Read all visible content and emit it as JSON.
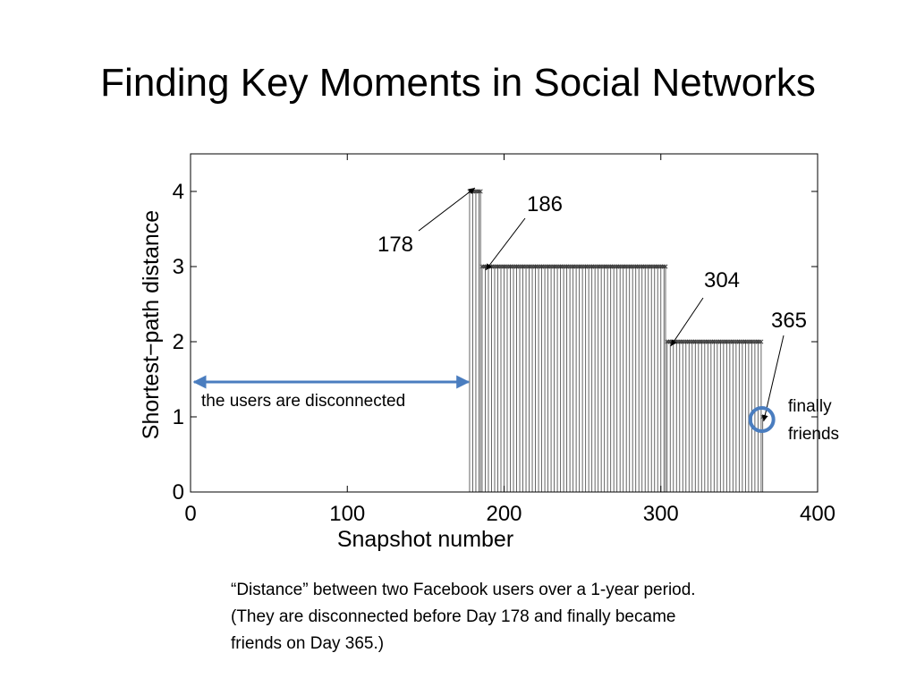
{
  "slide": {
    "title": "Finding Key Moments in Social Networks",
    "caption_lines": [
      "“Distance” between two Facebook users over a 1-year period.",
      "(They are disconnected before Day 178 and finally became",
      "friends on Day 365.)"
    ]
  },
  "chart_data": {
    "type": "bar",
    "xlabel": "Snapshot number",
    "ylabel": "Shortest−path distance",
    "xlim": [
      0,
      400
    ],
    "ylim": [
      0,
      4.5
    ],
    "xticks": [
      0,
      100,
      200,
      300,
      400
    ],
    "yticks": [
      0,
      1,
      2,
      3,
      4
    ],
    "grid": false,
    "series": [
      {
        "segments": [
          {
            "x_start": 1,
            "x_end": 177,
            "value": 0
          },
          {
            "x_start": 178,
            "x_end": 185,
            "value": 4
          },
          {
            "x_start": 186,
            "x_end": 303,
            "value": 3
          },
          {
            "x_start": 304,
            "x_end": 364,
            "value": 2
          },
          {
            "x_start": 365,
            "x_end": 365,
            "value": 1
          }
        ]
      }
    ],
    "annotations": [
      {
        "label": "178",
        "x": 178,
        "y": 4
      },
      {
        "label": "186",
        "x": 186,
        "y": 3
      },
      {
        "label": "304",
        "x": 304,
        "y": 2
      },
      {
        "label": "365",
        "x": 365,
        "y": 1
      }
    ],
    "disconnected_note": {
      "text": "the users are disconnected",
      "x_start": 0,
      "x_end": 175
    },
    "friends_note": {
      "lines": [
        "finally",
        "friends"
      ],
      "x": 365,
      "y": 1
    },
    "colors": {
      "stem": "#555555",
      "highlight": "#4a7dbf"
    }
  }
}
